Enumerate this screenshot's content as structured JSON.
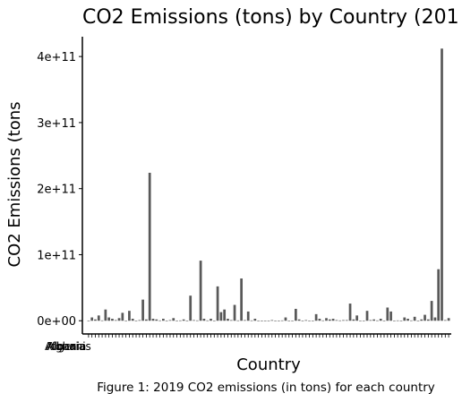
{
  "chart_data": {
    "type": "bar",
    "title": "CO2 Emissions (tons) by Country (201",
    "xlabel": "Country",
    "ylabel": "CO2 Emissions (tons",
    "caption": "Figure 1: 2019 CO2 emissions (in tons) for each country",
    "ylim": [
      -20000000000,
      430000000000
    ],
    "yticks": [
      0,
      100000000000,
      200000000000,
      300000000000,
      400000000000
    ],
    "ytick_labels": [
      "0e+00",
      "1e+11",
      "2e+11",
      "3e+11",
      "4e+11"
    ],
    "grid": false,
    "legend": "none",
    "bar_color": "#595959",
    "category_labels_visible": [
      "Afghanis",
      "Albania",
      "Algeria"
    ],
    "values": [
      100000000,
      5000000000,
      2000000000,
      8000000000,
      500000000,
      17000000000,
      5000000000,
      3000000000,
      1000000000,
      4000000000,
      12000000000,
      300000000,
      15000000000,
      3000000000,
      200000000,
      1000000000,
      32000000000,
      2000000000,
      224000000000,
      3000000000,
      2000000000,
      500000000,
      3000000000,
      200000000,
      1000000000,
      4000000000,
      300000000,
      500000000,
      2000000000,
      100000000,
      38000000000,
      1000000000,
      500000000,
      91000000000,
      3000000000,
      500000000,
      3000000000,
      100000000,
      52000000000,
      13000000000,
      17000000000,
      3000000000,
      1000000000,
      24000000000,
      500000000,
      64000000000,
      1000000000,
      14000000000,
      500000000,
      3000000000,
      200000000,
      100000000,
      300000000,
      100000000,
      1000000000,
      200000000,
      100000000,
      500000000,
      5000000000,
      100000000,
      100000000,
      18000000000,
      2000000000,
      100000000,
      1000000000,
      100000000,
      200000000,
      10000000000,
      3000000000,
      500000000,
      4000000000,
      2000000000,
      3000000000,
      1000000000,
      500000000,
      1000000000,
      1000000000,
      26000000000,
      2000000000,
      8000000000,
      200000000,
      100000000,
      15000000000,
      1000000000,
      2000000000,
      500000000,
      3000000000,
      200000000,
      20000000000,
      14000000000,
      200000000,
      500000000,
      100000000,
      5000000000,
      3000000000,
      500000000,
      6000000000,
      100000000,
      2000000000,
      9000000000,
      2000000000,
      30000000000,
      5000000000,
      78000000000,
      412000000000,
      1000000000,
      4000000000
    ]
  }
}
